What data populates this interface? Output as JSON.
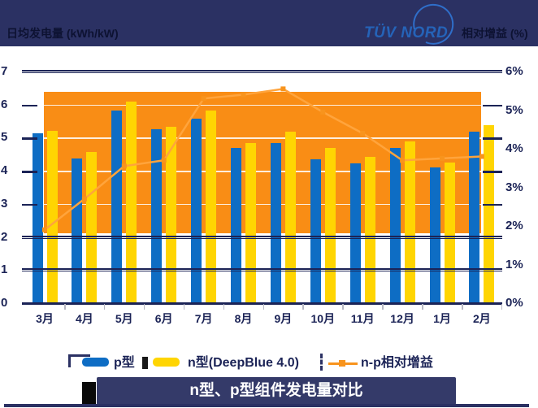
{
  "header": {
    "left_axis_title": "日均发电量 (kWh/kW)",
    "right_axis_title": "相对增益 (%)",
    "logo_text": "TÜV NORD"
  },
  "legend": [
    {
      "label": "p型",
      "type": "bar",
      "color": "#0E6DC4"
    },
    {
      "label": "n型(DeepBlue 4.0)",
      "type": "bar",
      "color": "#FFD502"
    },
    {
      "label": "n-p相对增益",
      "type": "line",
      "color": "#F8941D"
    }
  ],
  "footer": {
    "title": "n型、p型组件发电量对比"
  },
  "colors": {
    "header_bg": "#2B3163",
    "p_bar": "#0E6DC4",
    "n_bar": "#FFD502",
    "gain_band": "#F98D15",
    "gain_line": "#FFA43C",
    "gain_marker": "#F8941D",
    "axis_navy": "#1B2356",
    "banner_bg": "#343A69",
    "logo_blue": "#2563B8"
  },
  "chart_data": {
    "type": "bar",
    "title": "n型、p型组件发电量对比",
    "categories": [
      "3月",
      "4月",
      "5月",
      "6月",
      "7月",
      "8月",
      "9月",
      "10月",
      "11月",
      "12月",
      "1月",
      "2月"
    ],
    "series": [
      {
        "name": "p型",
        "type": "bar",
        "axis": "left",
        "values": [
          5.13,
          4.36,
          5.83,
          5.25,
          5.57,
          4.7,
          4.84,
          4.34,
          4.22,
          4.7,
          4.1,
          5.18
        ]
      },
      {
        "name": "n型(DeepBlue 4.0)",
        "type": "bar",
        "axis": "left",
        "values": [
          5.2,
          4.58,
          6.1,
          5.33,
          5.81,
          4.84,
          5.18,
          4.68,
          4.42,
          4.89,
          4.24,
          5.37
        ]
      },
      {
        "name": "n-p相对增益",
        "type": "line",
        "axis": "right",
        "unit": "%",
        "values": [
          1.9,
          2.7,
          3.55,
          3.7,
          5.3,
          5.4,
          5.55,
          4.95,
          4.4,
          3.7,
          3.75,
          3.8
        ]
      }
    ],
    "left_axis": {
      "title": "日均发电量 (kWh/kW)",
      "min": 0,
      "max": 7,
      "ticks": [
        7,
        6,
        5,
        4,
        3,
        2,
        1,
        0
      ]
    },
    "right_axis": {
      "title": "相对增益 (%)",
      "min": 0,
      "max": 6,
      "tick_labels": [
        "6%",
        "5%",
        "4%",
        "3%",
        "2%",
        "1%",
        "0%"
      ]
    },
    "gain_band": {
      "from_pct": 1.8,
      "to_pct": 5.47
    },
    "grid": "on",
    "legend_position": "bottom"
  }
}
